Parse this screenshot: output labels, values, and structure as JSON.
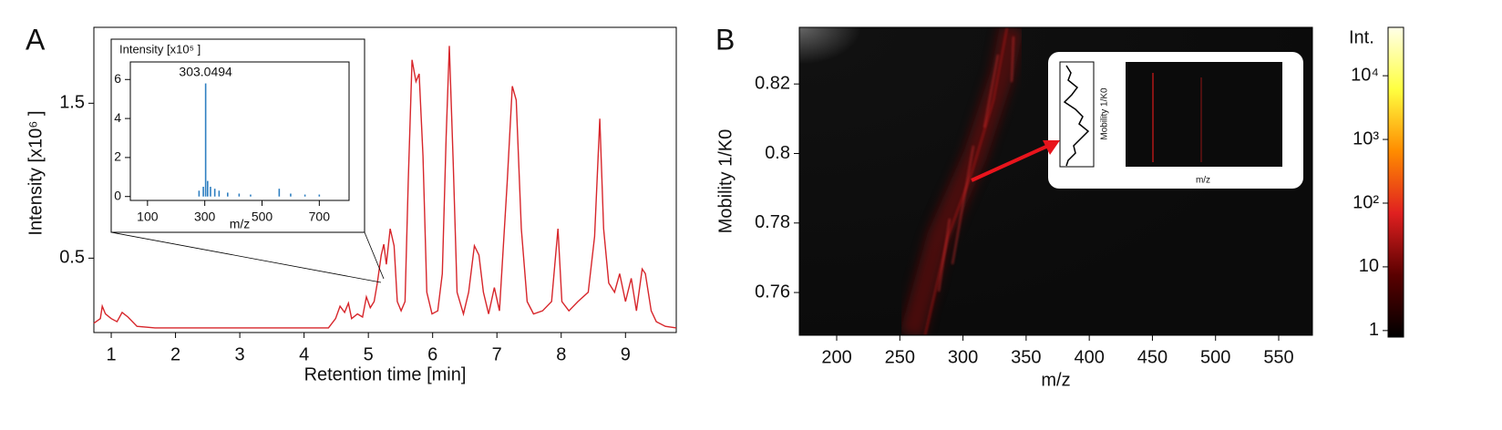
{
  "chart_data": [
    {
      "type": "line",
      "panel": "A",
      "xlabel": "Retention time [min]",
      "ylabel": "Intensity [x10⁶ ]",
      "color": "#d7262b",
      "xlim": [
        0.73,
        9.79
      ],
      "ylim": [
        0.02,
        1.99
      ],
      "xticks": [
        1,
        2,
        3,
        4,
        5,
        6,
        7,
        8,
        9
      ],
      "yticks": [
        0.5,
        1.5
      ],
      "x": [
        0.73,
        0.83,
        0.86,
        0.91,
        1.0,
        1.09,
        1.17,
        1.26,
        1.4,
        1.68,
        2.82,
        4.38,
        4.49,
        4.56,
        4.63,
        4.69,
        4.74,
        4.83,
        4.91,
        4.97,
        5.03,
        5.09,
        5.14,
        5.2,
        5.24,
        5.28,
        5.34,
        5.4,
        5.45,
        5.51,
        5.57,
        5.62,
        5.68,
        5.74,
        5.79,
        5.85,
        5.91,
        5.99,
        6.08,
        6.15,
        6.21,
        6.26,
        6.32,
        6.38,
        6.48,
        6.56,
        6.65,
        6.72,
        6.79,
        6.87,
        6.96,
        7.04,
        7.16,
        7.24,
        7.3,
        7.38,
        7.47,
        7.57,
        7.71,
        7.85,
        7.95,
        8.01,
        8.12,
        8.26,
        8.42,
        8.52,
        8.6,
        8.66,
        8.74,
        8.83,
        8.91,
        9.0,
        9.09,
        9.17,
        9.26,
        9.31,
        9.4,
        9.48,
        9.62,
        9.79
      ],
      "values": [
        0.08,
        0.11,
        0.19,
        0.14,
        0.11,
        0.09,
        0.15,
        0.12,
        0.06,
        0.05,
        0.05,
        0.05,
        0.11,
        0.19,
        0.15,
        0.21,
        0.11,
        0.14,
        0.12,
        0.25,
        0.18,
        0.22,
        0.34,
        0.52,
        0.59,
        0.46,
        0.69,
        0.58,
        0.22,
        0.16,
        0.22,
        0.99,
        1.78,
        1.64,
        1.69,
        1.16,
        0.28,
        0.14,
        0.16,
        0.4,
        1.28,
        1.87,
        1.11,
        0.28,
        0.14,
        0.28,
        0.58,
        0.52,
        0.28,
        0.14,
        0.31,
        0.16,
        0.99,
        1.61,
        1.52,
        0.69,
        0.22,
        0.14,
        0.16,
        0.22,
        0.69,
        0.22,
        0.16,
        0.22,
        0.28,
        0.64,
        1.4,
        0.69,
        0.34,
        0.28,
        0.4,
        0.22,
        0.37,
        0.16,
        0.43,
        0.4,
        0.16,
        0.09,
        0.06,
        0.05
      ]
    },
    {
      "type": "spectrum",
      "title": "Intensity [x10⁵ ]",
      "xlabel": "m/z",
      "color": "#2f7fc1",
      "xlim": [
        40,
        804
      ],
      "ylim": [
        -0.2,
        6.9
      ],
      "xticks": [
        100,
        300,
        500,
        700
      ],
      "yticks": [
        0,
        2,
        4,
        6
      ],
      "x": [
        280,
        295,
        303.0494,
        310,
        320,
        335,
        350,
        380,
        420,
        460,
        560,
        600,
        650,
        700
      ],
      "values": [
        0.3,
        0.5,
        5.8,
        0.8,
        0.5,
        0.4,
        0.3,
        0.2,
        0.15,
        0.1,
        0.4,
        0.15,
        0.1,
        0.1
      ],
      "annotations": [
        {
          "text": "303.0494",
          "x": 303.0494,
          "y": 5.8
        }
      ]
    },
    {
      "type": "heatmap",
      "panel": "B",
      "xlabel": "m/z",
      "ylabel": "Mobility 1/K0",
      "xlim": [
        170.4,
        576.7
      ],
      "ylim": [
        0.7477,
        0.8363
      ],
      "xticks": [
        200,
        250,
        300,
        350,
        400,
        450,
        500,
        550
      ],
      "yticks": [
        0.76,
        0.78,
        0.8,
        0.82
      ],
      "inset": {
        "ylabel": "Mobility 1/K0",
        "xlabel": "m/z"
      },
      "colorbar": {
        "title": "Int.",
        "log": true,
        "clim": [
          0.79,
          57500
        ],
        "colors": [
          "#000000",
          "#5a0000",
          "#e02020",
          "#ff8c00",
          "#ffff40",
          "#ffffe8"
        ],
        "ticks": [
          {
            "value": 1,
            "label": "1"
          },
          {
            "value": 10,
            "label": "10"
          },
          {
            "value": 100,
            "label": "10²"
          },
          {
            "value": 1000,
            "label": "10³"
          },
          {
            "value": 10000,
            "label": "10⁴"
          }
        ]
      }
    }
  ]
}
